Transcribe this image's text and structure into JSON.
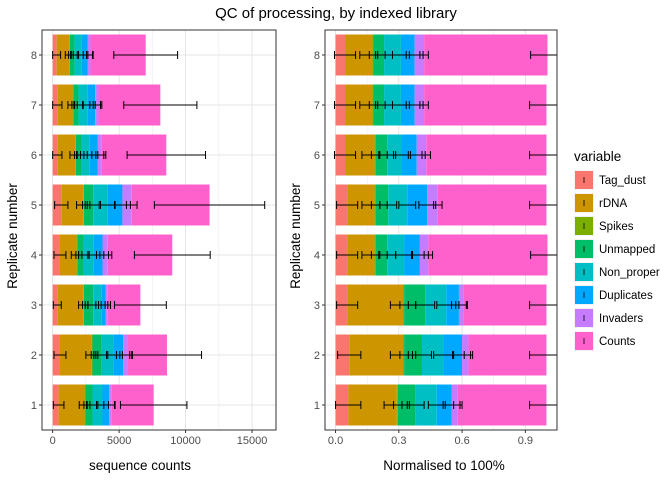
{
  "chart_data": [
    {
      "type": "bar",
      "orientation": "horizontal",
      "stacked": true,
      "title": "QC of processing, by indexed library",
      "xlabel": "sequence counts",
      "ylabel": "Replicate number",
      "xlim": [
        -800,
        16800
      ],
      "xticks": [
        0,
        5000,
        10000,
        15000
      ],
      "categories": [
        "1",
        "2",
        "3",
        "4",
        "5",
        "6",
        "7",
        "8"
      ],
      "series": [
        {
          "name": "Tag_dust",
          "values": [
            450,
            550,
            350,
            550,
            650,
            350,
            350,
            300
          ],
          "errors": [
            400,
            450,
            300,
            450,
            500,
            350,
            350,
            300
          ]
        },
        {
          "name": "rDNA",
          "values": [
            1950,
            2400,
            1950,
            1250,
            1650,
            1350,
            1150,
            950
          ],
          "errors": [
            400,
            450,
            350,
            400,
            500,
            400,
            350,
            300
          ]
        },
        {
          "name": "Spikes",
          "values": [
            50,
            50,
            50,
            50,
            50,
            50,
            50,
            50
          ],
          "errors": [
            100,
            100,
            100,
            100,
            100,
            100,
            100,
            100
          ]
        },
        {
          "name": "Unmapped",
          "values": [
            550,
            700,
            700,
            500,
            700,
            450,
            400,
            350
          ],
          "errors": [
            400,
            450,
            400,
            400,
            450,
            400,
            350,
            300
          ]
        },
        {
          "name": "Non_proper",
          "values": [
            750,
            850,
            650,
            750,
            1100,
            600,
            700,
            550
          ],
          "errors": [
            450,
            500,
            450,
            450,
            550,
            450,
            400,
            350
          ]
        },
        {
          "name": "Duplicates",
          "values": [
            500,
            750,
            300,
            650,
            1100,
            600,
            550,
            450
          ],
          "errors": [
            400,
            500,
            350,
            450,
            600,
            450,
            400,
            350
          ]
        },
        {
          "name": "Invaders",
          "values": [
            200,
            300,
            150,
            400,
            700,
            300,
            250,
            200
          ],
          "errors": [
            250,
            350,
            200,
            300,
            400,
            300,
            250,
            200
          ]
        },
        {
          "name": "Counts",
          "values": [
            3150,
            3000,
            2450,
            4850,
            5850,
            4850,
            4650,
            4150
          ],
          "errors": [
            2500,
            2600,
            1950,
            2850,
            4150,
            2950,
            2750,
            2400
          ]
        }
      ]
    },
    {
      "type": "bar",
      "orientation": "horizontal",
      "stacked": true,
      "xlabel": "Normalised to 100%",
      "ylabel": "Replicate number",
      "xlim": [
        -0.05,
        1.05
      ],
      "xticks": [
        0.0,
        0.3,
        0.6,
        0.9
      ],
      "xtick_labels": [
        "0.0",
        "0.3",
        "0.6",
        "0.9"
      ],
      "categories": [
        "1",
        "2",
        "3",
        "4",
        "5",
        "6",
        "7",
        "8"
      ],
      "series": [
        {
          "name": "Tag_dust",
          "values": [
            0.06,
            0.065,
            0.055,
            0.055,
            0.055,
            0.045,
            0.045,
            0.045
          ],
          "errors": [
            0.06,
            0.055,
            0.05,
            0.05,
            0.05,
            0.05,
            0.05,
            0.05
          ]
        },
        {
          "name": "rDNA",
          "values": [
            0.23,
            0.255,
            0.265,
            0.13,
            0.13,
            0.14,
            0.13,
            0.13
          ],
          "errors": [
            0.06,
            0.06,
            0.06,
            0.06,
            0.06,
            0.06,
            0.06,
            0.06
          ]
        },
        {
          "name": "Spikes",
          "values": [
            0.005,
            0.005,
            0.005,
            0.005,
            0.005,
            0.005,
            0.005,
            0.005
          ],
          "errors": [
            0.02,
            0.02,
            0.02,
            0.02,
            0.02,
            0.02,
            0.02,
            0.02
          ]
        },
        {
          "name": "Unmapped",
          "values": [
            0.085,
            0.085,
            0.1,
            0.055,
            0.06,
            0.055,
            0.05,
            0.05
          ],
          "errors": [
            0.04,
            0.045,
            0.045,
            0.04,
            0.04,
            0.04,
            0.04,
            0.04
          ]
        },
        {
          "name": "Non_proper",
          "values": [
            0.1,
            0.1,
            0.1,
            0.08,
            0.09,
            0.07,
            0.08,
            0.08
          ],
          "errors": [
            0.04,
            0.045,
            0.045,
            0.04,
            0.04,
            0.04,
            0.04,
            0.04
          ]
        },
        {
          "name": "Duplicates",
          "values": [
            0.07,
            0.09,
            0.06,
            0.075,
            0.095,
            0.07,
            0.065,
            0.065
          ],
          "errors": [
            0.04,
            0.04,
            0.035,
            0.04,
            0.04,
            0.04,
            0.04,
            0.04
          ]
        },
        {
          "name": "Invaders",
          "values": [
            0.03,
            0.03,
            0.02,
            0.04,
            0.05,
            0.045,
            0.045,
            0.045
          ],
          "errors": [
            0.02,
            0.02,
            0.02,
            0.02,
            0.02,
            0.02,
            0.02,
            0.02
          ]
        },
        {
          "name": "Counts",
          "values": [
            0.42,
            0.37,
            0.395,
            0.565,
            0.515,
            0.57,
            0.58,
            0.585
          ],
          "errors": [
            0.08,
            0.08,
            0.08,
            0.08,
            0.08,
            0.08,
            0.08,
            0.08
          ]
        }
      ]
    }
  ],
  "legend": {
    "title": "variable",
    "position": "right",
    "items": [
      {
        "label": "Tag_dust",
        "color": "#F8766D"
      },
      {
        "label": "rDNA",
        "color": "#CD9600"
      },
      {
        "label": "Spikes",
        "color": "#7CAE00"
      },
      {
        "label": "Unmapped",
        "color": "#00BE67"
      },
      {
        "label": "Non_proper",
        "color": "#00BFC4"
      },
      {
        "label": "Duplicates",
        "color": "#00A9FF"
      },
      {
        "label": "Invaders",
        "color": "#C77CFF"
      },
      {
        "label": "Counts",
        "color": "#FF61CC"
      }
    ]
  }
}
